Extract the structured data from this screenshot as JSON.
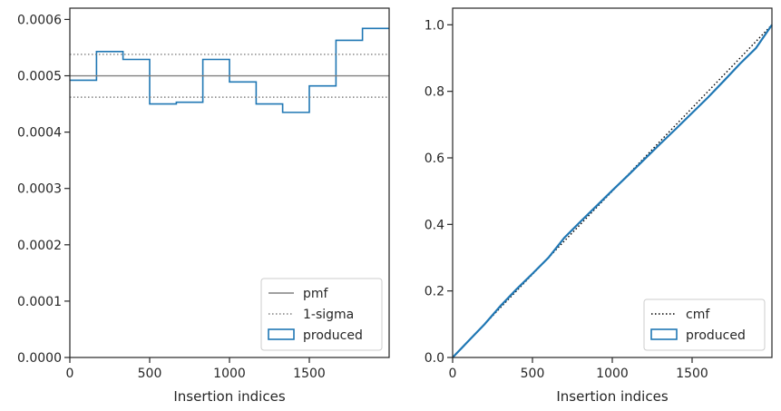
{
  "chart_data": [
    {
      "type": "histogram-step",
      "xlabel": "Insertion indices",
      "ylabel": "",
      "xlim": [
        0,
        2000
      ],
      "ylim": [
        0,
        0.00062
      ],
      "xticks": [
        0,
        500,
        1000,
        1500
      ],
      "xtick_labels": [
        "0",
        "500",
        "1000",
        "1500"
      ],
      "yticks": [
        0,
        0.0001,
        0.0002,
        0.0003,
        0.0004,
        0.0005,
        0.0006
      ],
      "ytick_labels": [
        "0.0000",
        "0.0001",
        "0.0002",
        "0.0003",
        "0.0004",
        "0.0005",
        "0.0006"
      ],
      "bin_edges": [
        0,
        167,
        333,
        500,
        667,
        833,
        1000,
        1167,
        1333,
        1500,
        1667,
        1833,
        2000
      ],
      "series": [
        {
          "name": "produced",
          "kind": "step",
          "color": "#1f77b4",
          "values": [
            0.000492,
            0.000543,
            0.000529,
            0.00045,
            0.000453,
            0.000529,
            0.000489,
            0.00045,
            0.000435,
            0.000482,
            0.000563,
            0.000584
          ]
        },
        {
          "name": "pmf",
          "kind": "hline",
          "color": "#808080",
          "value": 0.0005
        },
        {
          "name": "1-sigma",
          "kind": "hline-dotted",
          "color": "#808080",
          "values": [
            0.000538,
            0.000462
          ]
        }
      ],
      "legend": {
        "position": "lower right",
        "entries": [
          "pmf",
          "1-sigma",
          "produced"
        ]
      }
    },
    {
      "type": "line",
      "xlabel": "Insertion indices",
      "ylabel": "",
      "xlim": [
        0,
        2000
      ],
      "ylim": [
        0,
        1.05
      ],
      "xticks": [
        0,
        500,
        1000,
        1500
      ],
      "xtick_labels": [
        "0",
        "500",
        "1000",
        "1500"
      ],
      "yticks": [
        0,
        0.2,
        0.4,
        0.6,
        0.8,
        1.0
      ],
      "ytick_labels": [
        "0.0",
        "0.2",
        "0.4",
        "0.6",
        "0.8",
        "1.0"
      ],
      "series": [
        {
          "name": "cmf",
          "kind": "dotted",
          "color": "#000000",
          "x": [
            0,
            2000
          ],
          "y": [
            0,
            1
          ]
        },
        {
          "name": "produced",
          "kind": "solid",
          "color": "#1f77b4",
          "x": [
            0,
            100,
            200,
            300,
            400,
            500,
            600,
            700,
            800,
            900,
            1000,
            1100,
            1200,
            1300,
            1400,
            1500,
            1600,
            1700,
            1800,
            1900,
            2000
          ],
          "y": [
            0,
            0.05,
            0.1,
            0.155,
            0.205,
            0.252,
            0.3,
            0.36,
            0.408,
            0.455,
            0.502,
            0.548,
            0.595,
            0.642,
            0.688,
            0.735,
            0.782,
            0.832,
            0.883,
            0.93,
            1.0
          ]
        }
      ],
      "legend": {
        "position": "lower right",
        "entries": [
          "cmf",
          "produced"
        ]
      }
    }
  ]
}
